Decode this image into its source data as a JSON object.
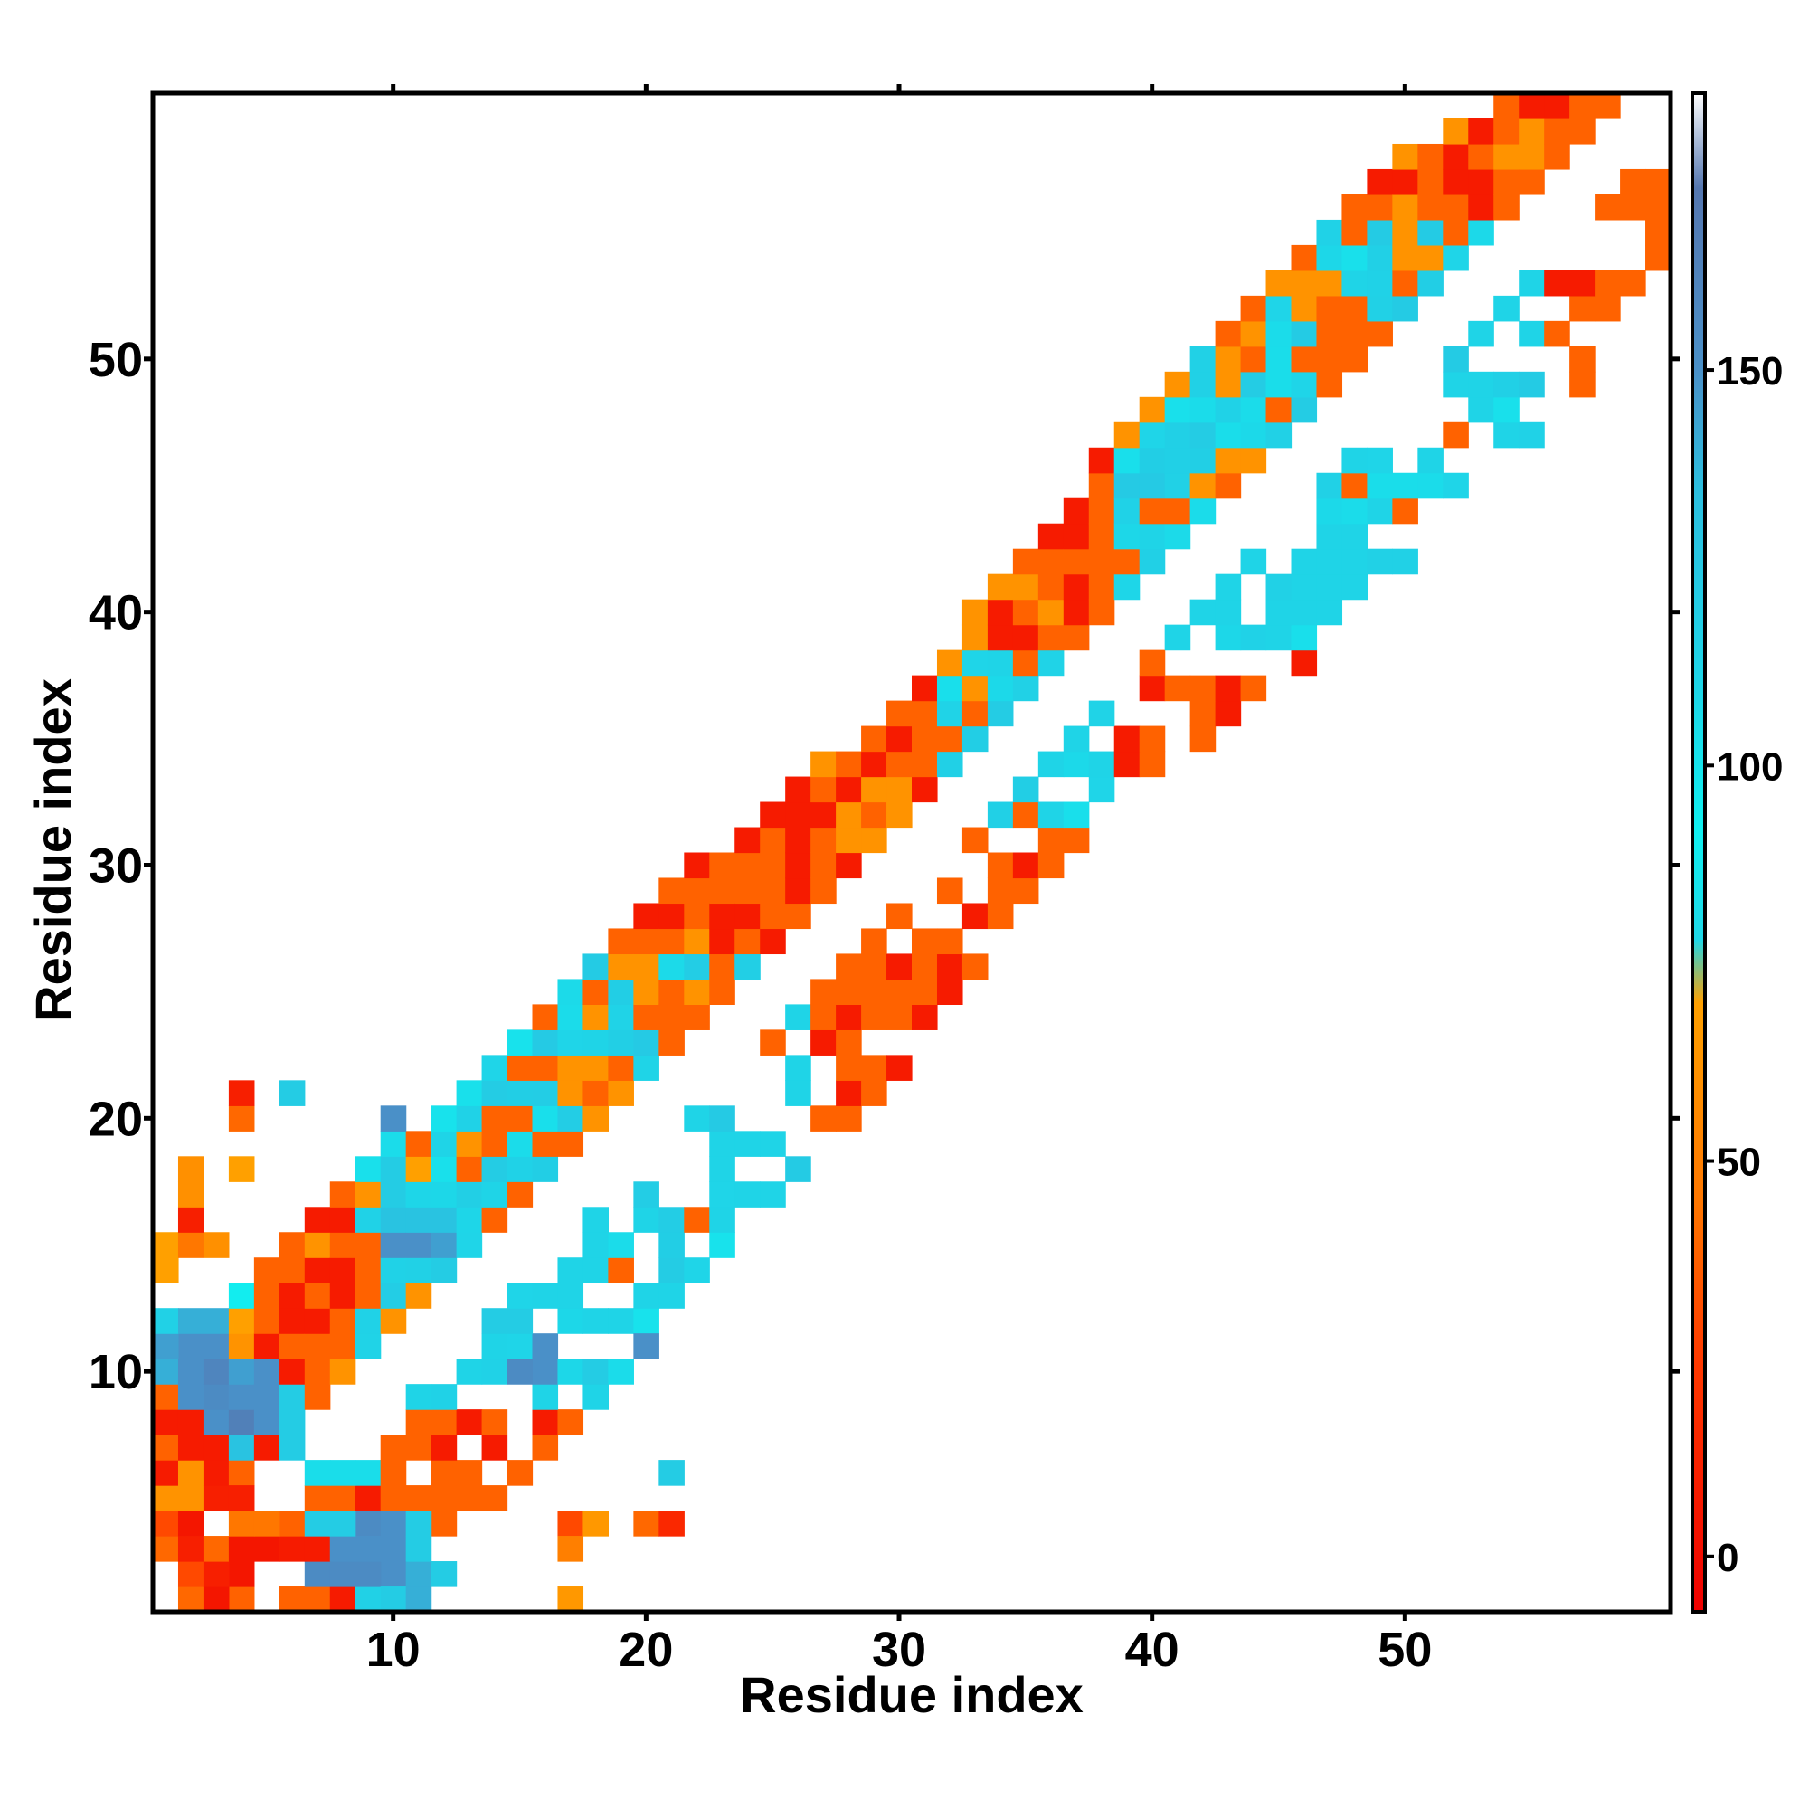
{
  "chart_data": {
    "type": "heatmap",
    "title": "",
    "xlabel": "Residue index",
    "ylabel": "Residue index",
    "xlim": [
      0.5,
      60.5
    ],
    "ylim": [
      0.5,
      60.5
    ],
    "x_ticks": [
      10,
      20,
      30,
      40,
      50
    ],
    "y_ticks": [
      10,
      20,
      30,
      40,
      50
    ],
    "colorbar": {
      "ticks": [
        0,
        50,
        100,
        150
      ],
      "range": [
        -7,
        185
      ],
      "stops": [
        {
          "value": -7,
          "color": "#ee0000"
        },
        {
          "value": 25,
          "color": "#ff3a00"
        },
        {
          "value": 45,
          "color": "#ff7700"
        },
        {
          "value": 70,
          "color": "#ffa000"
        },
        {
          "value": 78,
          "color": "#1fd8e8"
        },
        {
          "value": 92,
          "color": "#10f0f0"
        },
        {
          "value": 110,
          "color": "#1ed6e8"
        },
        {
          "value": 135,
          "color": "#2cbedf"
        },
        {
          "value": 150,
          "color": "#4a90c8"
        },
        {
          "value": 173,
          "color": "#5577b0"
        },
        {
          "value": 185,
          "color": "#ffffff"
        }
      ]
    },
    "band": {
      "min_offset": 2,
      "max_offset_by_x": [
        [
          1,
          9
        ],
        [
          20,
          8
        ],
        [
          30,
          6
        ],
        [
          40,
          8
        ],
        [
          50,
          8
        ],
        [
          57,
          4
        ],
        [
          60,
          2
        ]
      ],
      "beta_ranges": [
        [
          9,
          26
        ],
        [
          32,
          38
        ],
        [
          39,
          55
        ]
      ],
      "beta_value": 112
    },
    "nonlocal_cells": [
      [
        1,
        3,
        40
      ],
      [
        1,
        4,
        30
      ],
      [
        2,
        1,
        40
      ],
      [
        2,
        2,
        30
      ],
      [
        2,
        3,
        10
      ],
      [
        2,
        4,
        5
      ],
      [
        3,
        1,
        5
      ],
      [
        3,
        2,
        10
      ],
      [
        3,
        3,
        40
      ],
      [
        4,
        2,
        5
      ],
      [
        4,
        3,
        5
      ],
      [
        4,
        4,
        45
      ],
      [
        5,
        3,
        5
      ],
      [
        5,
        4,
        45
      ],
      [
        4,
        5,
        10
      ],
      [
        3,
        5,
        10
      ],
      [
        1,
        10,
        140
      ],
      [
        1,
        11,
        145
      ],
      [
        2,
        9,
        150
      ],
      [
        2,
        10,
        150
      ],
      [
        2,
        11,
        150
      ],
      [
        3,
        8,
        150
      ],
      [
        3,
        9,
        155
      ],
      [
        3,
        10,
        160
      ],
      [
        3,
        11,
        150
      ],
      [
        4,
        7,
        130
      ],
      [
        4,
        8,
        165
      ],
      [
        4,
        9,
        150
      ],
      [
        4,
        10,
        145
      ],
      [
        5,
        8,
        150
      ],
      [
        5,
        9,
        150
      ],
      [
        5,
        10,
        150
      ],
      [
        6,
        9,
        120
      ],
      [
        6,
        8,
        120
      ],
      [
        6,
        7,
        120
      ],
      [
        1,
        12,
        115
      ],
      [
        2,
        12,
        140
      ],
      [
        3,
        12,
        140
      ],
      [
        4,
        12,
        70
      ],
      [
        4,
        13,
        90
      ],
      [
        1,
        14,
        70
      ],
      [
        1,
        15,
        70
      ],
      [
        2,
        15,
        45
      ],
      [
        3,
        15,
        60
      ],
      [
        2,
        16,
        10
      ],
      [
        2,
        17,
        60
      ],
      [
        2,
        18,
        60
      ],
      [
        4,
        18,
        70
      ],
      [
        4,
        20,
        40
      ],
      [
        4,
        21,
        10
      ],
      [
        6,
        21,
        120
      ],
      [
        7,
        2,
        155
      ],
      [
        8,
        2,
        155
      ],
      [
        9,
        2,
        155
      ],
      [
        10,
        2,
        150
      ],
      [
        9,
        1,
        115
      ],
      [
        10,
        1,
        120
      ],
      [
        11,
        1,
        140
      ],
      [
        11,
        2,
        140
      ],
      [
        12,
        2,
        120
      ],
      [
        8,
        3,
        150
      ],
      [
        9,
        3,
        150
      ],
      [
        10,
        3,
        150
      ],
      [
        11,
        3,
        120
      ],
      [
        9,
        4,
        155
      ],
      [
        10,
        4,
        150
      ],
      [
        11,
        4,
        120
      ],
      [
        7,
        4,
        120
      ],
      [
        8,
        4,
        120
      ],
      [
        7,
        6,
        105
      ],
      [
        8,
        6,
        105
      ],
      [
        9,
        6,
        105
      ],
      [
        10,
        15,
        150
      ],
      [
        11,
        15,
        150
      ],
      [
        12,
        15,
        145
      ],
      [
        10,
        16,
        130
      ],
      [
        11,
        16,
        130
      ],
      [
        12,
        16,
        130
      ],
      [
        10,
        17,
        120
      ],
      [
        11,
        17,
        110
      ],
      [
        11,
        18,
        70
      ],
      [
        10,
        20,
        150
      ],
      [
        15,
        10,
        155
      ],
      [
        16,
        10,
        150
      ],
      [
        16,
        11,
        150
      ],
      [
        20,
        11,
        150
      ],
      [
        21,
        6,
        120
      ],
      [
        17,
        4,
        30
      ],
      [
        18,
        4,
        65
      ],
      [
        20,
        4,
        40
      ],
      [
        21,
        4,
        15
      ],
      [
        17,
        3,
        50
      ],
      [
        17,
        1,
        65
      ]
    ]
  }
}
